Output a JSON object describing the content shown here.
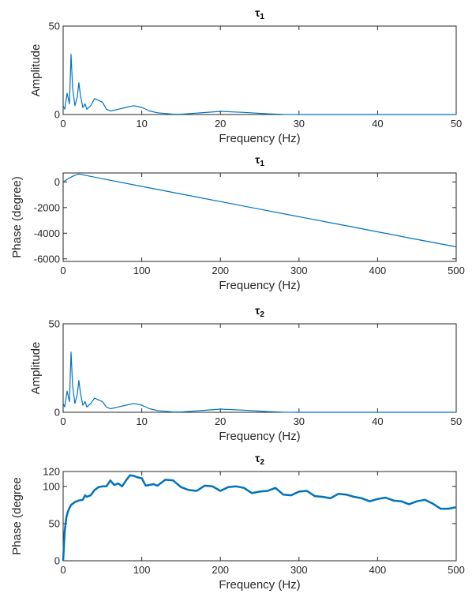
{
  "chart_data": [
    {
      "type": "line",
      "title": {
        "main": "τ",
        "sub": "1"
      },
      "xlabel": "Frequency (Hz)",
      "ylabel": "Amplitude",
      "xlim": [
        0,
        50
      ],
      "ylim": [
        0,
        50
      ],
      "xticks": [
        0,
        10,
        20,
        30,
        40,
        50
      ],
      "yticks": [
        0,
        50
      ],
      "grid": false,
      "color": "#0072BD",
      "series": [
        {
          "x": [
            0,
            0.2,
            0.5,
            0.8,
            1.0,
            1.2,
            1.5,
            1.8,
            2.0,
            2.2,
            2.5,
            2.8,
            3.0,
            3.5,
            4.0,
            4.5,
            5.0,
            5.5,
            6.0,
            7.0,
            8.0,
            9.0,
            10.0,
            11.0,
            12.0,
            13.0,
            14.0,
            15.0,
            17.0,
            20.0,
            23.0,
            26.0,
            28.0,
            30.0,
            35.0,
            40.0,
            45.0,
            50.0
          ],
          "y": [
            5,
            3,
            12,
            6,
            34,
            15,
            5,
            10,
            18,
            11,
            4,
            6,
            3,
            5,
            9,
            8,
            7,
            3,
            2,
            3,
            4,
            5,
            4,
            2,
            1,
            0.6,
            0.2,
            0.2,
            0.8,
            1.8,
            1.2,
            0.4,
            0.1,
            0,
            0,
            0,
            0,
            0
          ]
        }
      ]
    },
    {
      "type": "line",
      "title": {
        "main": "τ",
        "sub": "1"
      },
      "xlabel": "Frequency (Hz)",
      "ylabel": "Phase (degree)",
      "xlim": [
        0,
        500
      ],
      "ylim": [
        -6200,
        700
      ],
      "xticks": [
        0,
        100,
        200,
        300,
        400,
        500
      ],
      "yticks": [
        -6000,
        -4000,
        -2000,
        0
      ],
      "grid": false,
      "color": "#0072BD",
      "series": [
        {
          "x": [
            0,
            5,
            10,
            15,
            20,
            50,
            100,
            150,
            200,
            250,
            300,
            350,
            400,
            450,
            500
          ],
          "y": [
            0,
            200,
            380,
            520,
            620,
            250,
            -350,
            -940,
            -1530,
            -2120,
            -2710,
            -3300,
            -3890,
            -4480,
            -5060
          ]
        }
      ]
    },
    {
      "type": "line",
      "title": {
        "main": "τ",
        "sub": "2"
      },
      "xlabel": "Frequency (Hz)",
      "ylabel": "Amplitude",
      "xlim": [
        0,
        50
      ],
      "ylim": [
        0,
        50
      ],
      "xticks": [
        0,
        10,
        20,
        30,
        40,
        50
      ],
      "yticks": [
        0,
        50
      ],
      "grid": false,
      "color": "#0072BD",
      "series": [
        {
          "x": [
            0,
            0.2,
            0.5,
            0.8,
            1.0,
            1.2,
            1.5,
            1.8,
            2.0,
            2.2,
            2.5,
            2.8,
            3.0,
            3.5,
            4.0,
            4.5,
            5.0,
            5.5,
            6.0,
            7.0,
            8.0,
            9.0,
            10.0,
            11.0,
            12.0,
            13.0,
            14.0,
            15.0,
            17.0,
            20.0,
            23.0,
            26.0,
            28.0,
            30.0,
            35.0,
            40.0,
            45.0,
            50.0
          ],
          "y": [
            5,
            3,
            12,
            6,
            34,
            15,
            5,
            10,
            18,
            11,
            4,
            6,
            3,
            5,
            8,
            7,
            6,
            3,
            2,
            3,
            4,
            5,
            4,
            2,
            1,
            0.6,
            0.2,
            0.2,
            0.8,
            1.8,
            1.2,
            0.4,
            0.1,
            0,
            0,
            0,
            0,
            0
          ]
        }
      ]
    },
    {
      "type": "line",
      "title": {
        "main": "τ",
        "sub": "2"
      },
      "xlabel": "Frequency (Hz)",
      "ylabel": "Phase (degree",
      "xlim": [
        0,
        500
      ],
      "ylim": [
        0,
        120
      ],
      "xticks": [
        0,
        100,
        200,
        300,
        400,
        500
      ],
      "yticks": [
        0,
        50,
        100,
        120
      ],
      "grid": false,
      "color": "#0072BD",
      "series": [
        {
          "x": [
            0,
            2,
            4,
            6,
            8,
            10,
            15,
            20,
            25,
            28,
            30,
            35,
            40,
            45,
            50,
            55,
            60,
            65,
            70,
            75,
            80,
            85,
            90,
            95,
            100,
            105,
            110,
            115,
            120,
            130,
            140,
            150,
            160,
            170,
            180,
            190,
            200,
            210,
            220,
            230,
            240,
            250,
            260,
            270,
            280,
            290,
            300,
            310,
            320,
            330,
            340,
            350,
            360,
            370,
            380,
            390,
            400,
            410,
            420,
            430,
            440,
            450,
            460,
            470,
            480,
            490,
            500
          ],
          "y": [
            0,
            40,
            58,
            66,
            71,
            75,
            79,
            81,
            82,
            88,
            86,
            88,
            95,
            99,
            100,
            100,
            108,
            102,
            104,
            100,
            108,
            115,
            114,
            112,
            111,
            101,
            102,
            103,
            101,
            109,
            108,
            99,
            95,
            94,
            101,
            100,
            94,
            99,
            100,
            98,
            91,
            93,
            94,
            98,
            89,
            88,
            93,
            94,
            87,
            86,
            84,
            90,
            89,
            86,
            84,
            80,
            83,
            85,
            81,
            80,
            76,
            80,
            82,
            77,
            70,
            70,
            72
          ]
        }
      ]
    }
  ]
}
